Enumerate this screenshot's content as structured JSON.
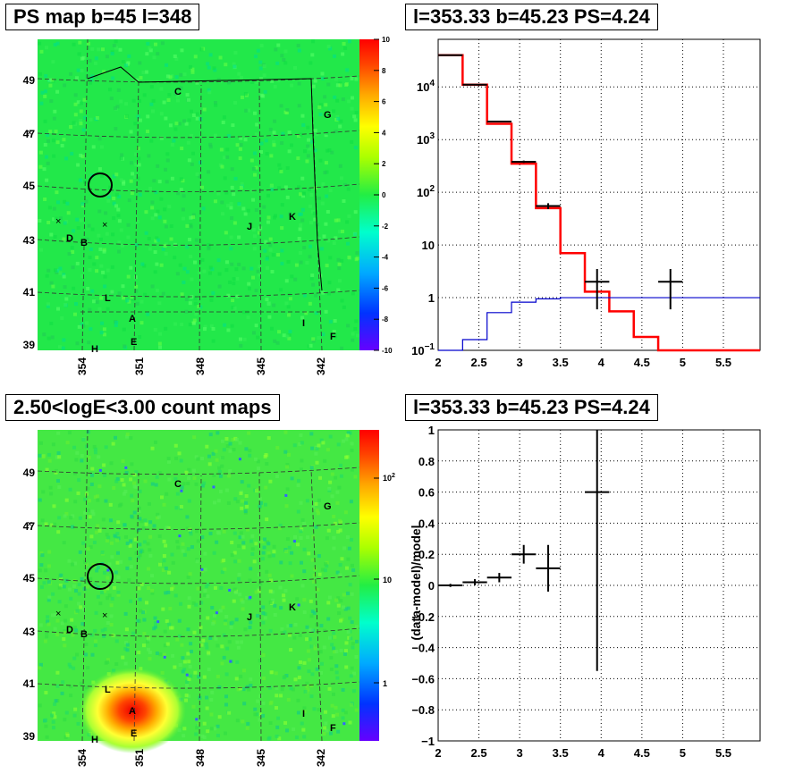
{
  "panels": {
    "ps_map": {
      "title": "PS map b=45 l=348",
      "y_ticks": [
        "49",
        "47",
        "45",
        "43",
        "41",
        "39"
      ],
      "x_ticks": [
        "354",
        "351",
        "348",
        "345",
        "342"
      ],
      "colorbar_ticks": [
        "10",
        "8",
        "6",
        "4",
        "2",
        "0",
        "-2",
        "-4",
        "-6",
        "-8",
        "-10"
      ],
      "letters": [
        "C",
        "G",
        "J",
        "K",
        "D",
        "B",
        "L",
        "A",
        "I",
        "F",
        "E",
        "H"
      ]
    },
    "count_map": {
      "title": "2.50<logE<3.00 count maps",
      "y_ticks": [
        "49",
        "47",
        "45",
        "43",
        "41",
        "39"
      ],
      "x_ticks": [
        "354",
        "351",
        "348",
        "345",
        "342"
      ],
      "colorbar_ticks": [
        {
          "base": "10",
          "exp": "2"
        },
        {
          "base": "10",
          "exp": ""
        },
        {
          "base": "1",
          "exp": ""
        }
      ],
      "letters": [
        "C",
        "G",
        "J",
        "K",
        "D",
        "B",
        "L",
        "A",
        "I",
        "F",
        "E",
        "H"
      ]
    },
    "spectrum": {
      "title": "l=353.33 b=45.23 PS=4.24",
      "y_ticks": [
        {
          "base": "10",
          "exp": "4"
        },
        {
          "base": "10",
          "exp": "3"
        },
        {
          "base": "10",
          "exp": "2"
        },
        {
          "base": "10",
          "exp": ""
        },
        {
          "base": "1",
          "exp": ""
        },
        {
          "base": "10",
          "exp": "−1"
        }
      ],
      "x_ticks": [
        "2",
        "2.5",
        "3",
        "3.5",
        "4",
        "4.5",
        "5",
        "5.5"
      ]
    },
    "residual": {
      "title": "l=353.33 b=45.23 PS=4.24",
      "ylabel": "(data-model)/model",
      "y_ticks": [
        "1",
        "0.8",
        "0.6",
        "0.4",
        "0.2",
        "0",
        "−0.2",
        "−0.4",
        "−0.6",
        "−0.8",
        "−1"
      ],
      "x_ticks": [
        "2",
        "2.5",
        "3",
        "3.5",
        "4",
        "4.5",
        "5",
        "5.5"
      ]
    }
  },
  "colors": {
    "map_background": "#22e84a",
    "model_line": "#ff0000",
    "background_line": "#0000cc",
    "data_points": "#000000"
  },
  "chart_data": [
    {
      "type": "line",
      "panel": "spectrum",
      "xlim": [
        2,
        5.95
      ],
      "ylim": [
        0.1,
        80000
      ],
      "log_y": true,
      "grid": true,
      "series": [
        {
          "kind": "step",
          "color": "#ff0000",
          "bin_edges": [
            2.0,
            2.3,
            2.6,
            2.9,
            3.2,
            3.5,
            3.8,
            4.1,
            4.4,
            4.7,
            5.95
          ],
          "values": [
            40000,
            11000,
            2000,
            350,
            50,
            7,
            1.3,
            0.55,
            0.18,
            0.1
          ]
        },
        {
          "kind": "step",
          "color": "#0000cc",
          "bin_edges": [
            2.0,
            2.3,
            2.6,
            2.9,
            3.2,
            3.5,
            3.8,
            4.1,
            4.4,
            4.7,
            5.95
          ],
          "values": [
            0.1,
            0.16,
            0.52,
            0.82,
            0.95,
            1.0,
            1.0,
            1.0,
            1.0,
            1.0
          ]
        },
        {
          "kind": "points",
          "color": "#000000",
          "x": [
            2.15,
            2.45,
            2.75,
            3.05,
            3.35,
            3.95,
            4.85
          ],
          "xerr": [
            0.15,
            0.15,
            0.15,
            0.15,
            0.15,
            0.15,
            0.15
          ],
          "y": [
            40000,
            11000,
            2200,
            380,
            55,
            2.0,
            2.0
          ],
          "yerr_low": [
            200,
            100,
            50,
            20,
            7,
            1.4,
            1.4
          ],
          "yerr_high": [
            200,
            100,
            50,
            20,
            7,
            1.5,
            1.5
          ]
        }
      ]
    },
    {
      "type": "scatter",
      "panel": "residual",
      "xlim": [
        2,
        5.95
      ],
      "ylim": [
        -1,
        1
      ],
      "grid": true,
      "ylabel": "(data-model)/model",
      "x": [
        2.15,
        2.45,
        2.75,
        3.05,
        3.35,
        3.95
      ],
      "xerr": [
        0.15,
        0.15,
        0.15,
        0.15,
        0.15,
        0.15
      ],
      "y": [
        0.0,
        0.02,
        0.05,
        0.2,
        0.11,
        0.6
      ],
      "yerr": [
        0.01,
        0.02,
        0.03,
        0.06,
        0.15,
        1.15
      ]
    }
  ]
}
